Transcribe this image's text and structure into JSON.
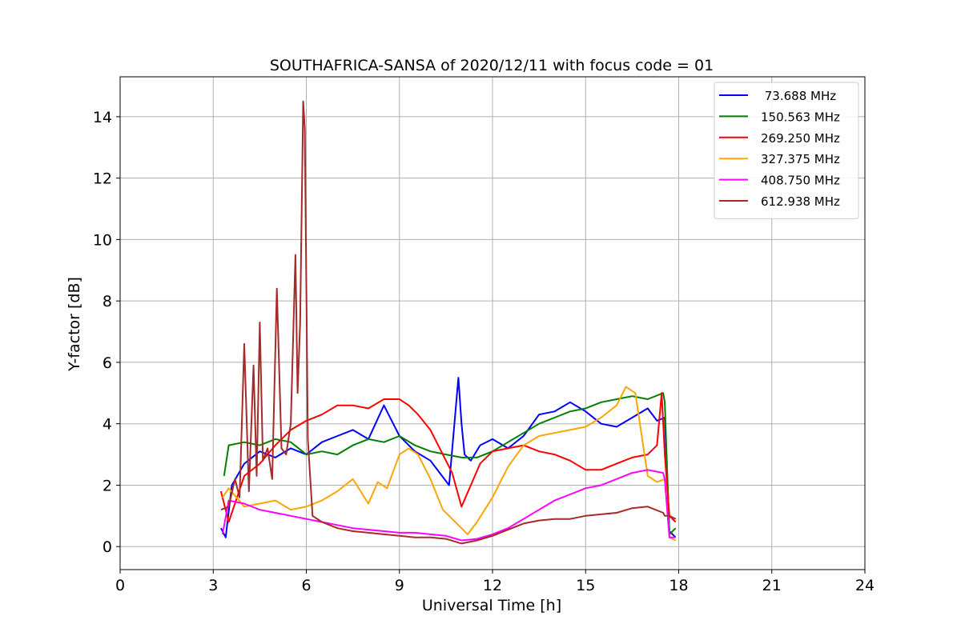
{
  "chart_data": {
    "type": "line",
    "title": "SOUTHAFRICA-SANSA of 2020/12/11 with focus code = 01",
    "xlabel": "Universal Time [h]",
    "ylabel": "Y-factor [dB]",
    "xlim": [
      0,
      24
    ],
    "ylim": [
      -0.75,
      15.3
    ],
    "xticks": [
      0,
      3,
      6,
      9,
      12,
      15,
      18,
      21,
      24
    ],
    "yticks": [
      0,
      2,
      4,
      6,
      8,
      10,
      12,
      14
    ],
    "grid": true,
    "legend_position": "top-right",
    "series": [
      {
        "name": " 73.688 MHz",
        "color": "#0000ff",
        "x": [
          3.25,
          3.4,
          3.6,
          4.0,
          4.5,
          5.0,
          5.5,
          6.0,
          6.5,
          7.0,
          7.5,
          8.0,
          8.5,
          9.0,
          9.5,
          10.0,
          10.3,
          10.6,
          10.9,
          11.0,
          11.1,
          11.3,
          11.6,
          12.0,
          12.5,
          13.0,
          13.5,
          14.0,
          14.5,
          15.0,
          15.5,
          16.0,
          16.5,
          17.0,
          17.3,
          17.55,
          17.7,
          17.9
        ],
        "y": [
          0.6,
          0.3,
          2.0,
          2.7,
          3.1,
          2.9,
          3.2,
          3.0,
          3.4,
          3.6,
          3.8,
          3.5,
          4.6,
          3.6,
          3.1,
          2.8,
          2.4,
          2.0,
          5.5,
          4.0,
          3.0,
          2.8,
          3.3,
          3.5,
          3.2,
          3.6,
          4.3,
          4.4,
          4.7,
          4.4,
          4.0,
          3.9,
          4.2,
          4.5,
          4.1,
          4.2,
          0.5,
          0.3
        ]
      },
      {
        "name": "150.563 MHz",
        "color": "#008000",
        "x": [
          3.35,
          3.5,
          4.0,
          4.5,
          5.0,
          5.5,
          6.0,
          6.5,
          7.0,
          7.5,
          8.0,
          8.5,
          9.0,
          9.5,
          10.0,
          10.5,
          11.0,
          11.5,
          12.0,
          12.5,
          13.0,
          13.5,
          14.0,
          14.5,
          15.0,
          15.5,
          16.0,
          16.5,
          17.0,
          17.5,
          17.55,
          17.7,
          17.9
        ],
        "y": [
          2.3,
          3.3,
          3.4,
          3.3,
          3.5,
          3.4,
          3.0,
          3.1,
          3.0,
          3.3,
          3.5,
          3.4,
          3.6,
          3.3,
          3.1,
          3.0,
          2.9,
          2.9,
          3.1,
          3.4,
          3.7,
          4.0,
          4.2,
          4.4,
          4.5,
          4.7,
          4.8,
          4.9,
          4.8,
          5.0,
          4.7,
          0.4,
          0.6
        ]
      },
      {
        "name": "269.250 MHz",
        "color": "#ff0000",
        "x": [
          3.25,
          3.5,
          3.7,
          4.0,
          4.5,
          5.0,
          5.5,
          6.0,
          6.5,
          7.0,
          7.5,
          8.0,
          8.5,
          9.0,
          9.3,
          9.6,
          10.0,
          10.3,
          10.7,
          11.0,
          11.3,
          11.6,
          12.0,
          12.5,
          13.0,
          13.5,
          14.0,
          14.5,
          15.0,
          15.5,
          16.0,
          16.5,
          17.0,
          17.3,
          17.45,
          17.55,
          17.7,
          17.9
        ],
        "y": [
          1.8,
          0.8,
          1.4,
          2.3,
          2.7,
          3.3,
          3.8,
          4.1,
          4.3,
          4.6,
          4.6,
          4.5,
          4.8,
          4.8,
          4.6,
          4.3,
          3.8,
          3.2,
          2.4,
          1.3,
          2.0,
          2.7,
          3.1,
          3.2,
          3.3,
          3.1,
          3.0,
          2.8,
          2.5,
          2.5,
          2.7,
          2.9,
          3.0,
          3.3,
          5.0,
          3.0,
          1.0,
          0.8
        ]
      },
      {
        "name": "327.375 MHz",
        "color": "#ffa500",
        "x": [
          3.3,
          3.5,
          4.0,
          4.5,
          5.0,
          5.5,
          6.0,
          6.5,
          7.0,
          7.5,
          8.0,
          8.3,
          8.6,
          9.0,
          9.3,
          9.6,
          10.0,
          10.4,
          10.8,
          11.2,
          11.5,
          12.0,
          12.5,
          13.0,
          13.5,
          14.0,
          14.5,
          15.0,
          15.5,
          16.0,
          16.3,
          16.6,
          17.0,
          17.3,
          17.55,
          17.7,
          17.9
        ],
        "y": [
          1.6,
          1.9,
          1.3,
          1.4,
          1.5,
          1.2,
          1.3,
          1.5,
          1.8,
          2.2,
          1.4,
          2.1,
          1.9,
          3.0,
          3.2,
          3.0,
          2.2,
          1.2,
          0.8,
          0.4,
          0.8,
          1.6,
          2.6,
          3.3,
          3.6,
          3.7,
          3.8,
          3.9,
          4.2,
          4.6,
          5.2,
          5.0,
          2.3,
          2.1,
          2.2,
          0.3,
          0.2
        ]
      },
      {
        "name": "408.750 MHz",
        "color": "#ff00ff",
        "x": [
          3.3,
          3.5,
          4.0,
          4.5,
          5.0,
          5.5,
          6.0,
          6.5,
          7.0,
          7.5,
          8.0,
          8.5,
          9.0,
          9.5,
          10.0,
          10.5,
          11.0,
          11.5,
          12.0,
          12.5,
          13.0,
          13.5,
          14.0,
          14.5,
          15.0,
          15.5,
          16.0,
          16.5,
          17.0,
          17.5,
          17.55,
          17.7,
          17.9
        ],
        "y": [
          0.4,
          1.5,
          1.4,
          1.2,
          1.1,
          1.0,
          0.9,
          0.8,
          0.7,
          0.6,
          0.55,
          0.5,
          0.45,
          0.45,
          0.4,
          0.35,
          0.2,
          0.25,
          0.4,
          0.6,
          0.9,
          1.2,
          1.5,
          1.7,
          1.9,
          2.0,
          2.2,
          2.4,
          2.5,
          2.4,
          2.2,
          0.3,
          0.3
        ]
      },
      {
        "name": "612.938 MHz",
        "color": "#a52a2a",
        "x": [
          3.25,
          3.5,
          3.7,
          3.85,
          4.0,
          4.15,
          4.3,
          4.4,
          4.5,
          4.6,
          4.75,
          4.9,
          5.05,
          5.2,
          5.35,
          5.5,
          5.65,
          5.72,
          5.8,
          5.9,
          5.95,
          6.05,
          6.2,
          6.5,
          7.0,
          7.5,
          8.0,
          8.5,
          9.0,
          9.5,
          10.0,
          10.5,
          11.0,
          11.5,
          12.0,
          12.5,
          13.0,
          13.5,
          14.0,
          14.5,
          15.0,
          15.5,
          16.0,
          16.5,
          17.0,
          17.5,
          17.55,
          17.7,
          17.9
        ],
        "y": [
          1.2,
          1.3,
          2.2,
          1.6,
          6.6,
          1.8,
          5.9,
          2.3,
          7.3,
          2.8,
          3.2,
          2.2,
          8.4,
          3.2,
          3.0,
          4.0,
          9.5,
          5.0,
          7.3,
          14.5,
          13.6,
          3.5,
          1.0,
          0.8,
          0.6,
          0.5,
          0.45,
          0.4,
          0.35,
          0.3,
          0.3,
          0.25,
          0.1,
          0.2,
          0.35,
          0.55,
          0.75,
          0.85,
          0.9,
          0.9,
          1.0,
          1.05,
          1.1,
          1.25,
          1.3,
          1.1,
          1.0,
          1.0,
          0.9
        ]
      }
    ]
  }
}
